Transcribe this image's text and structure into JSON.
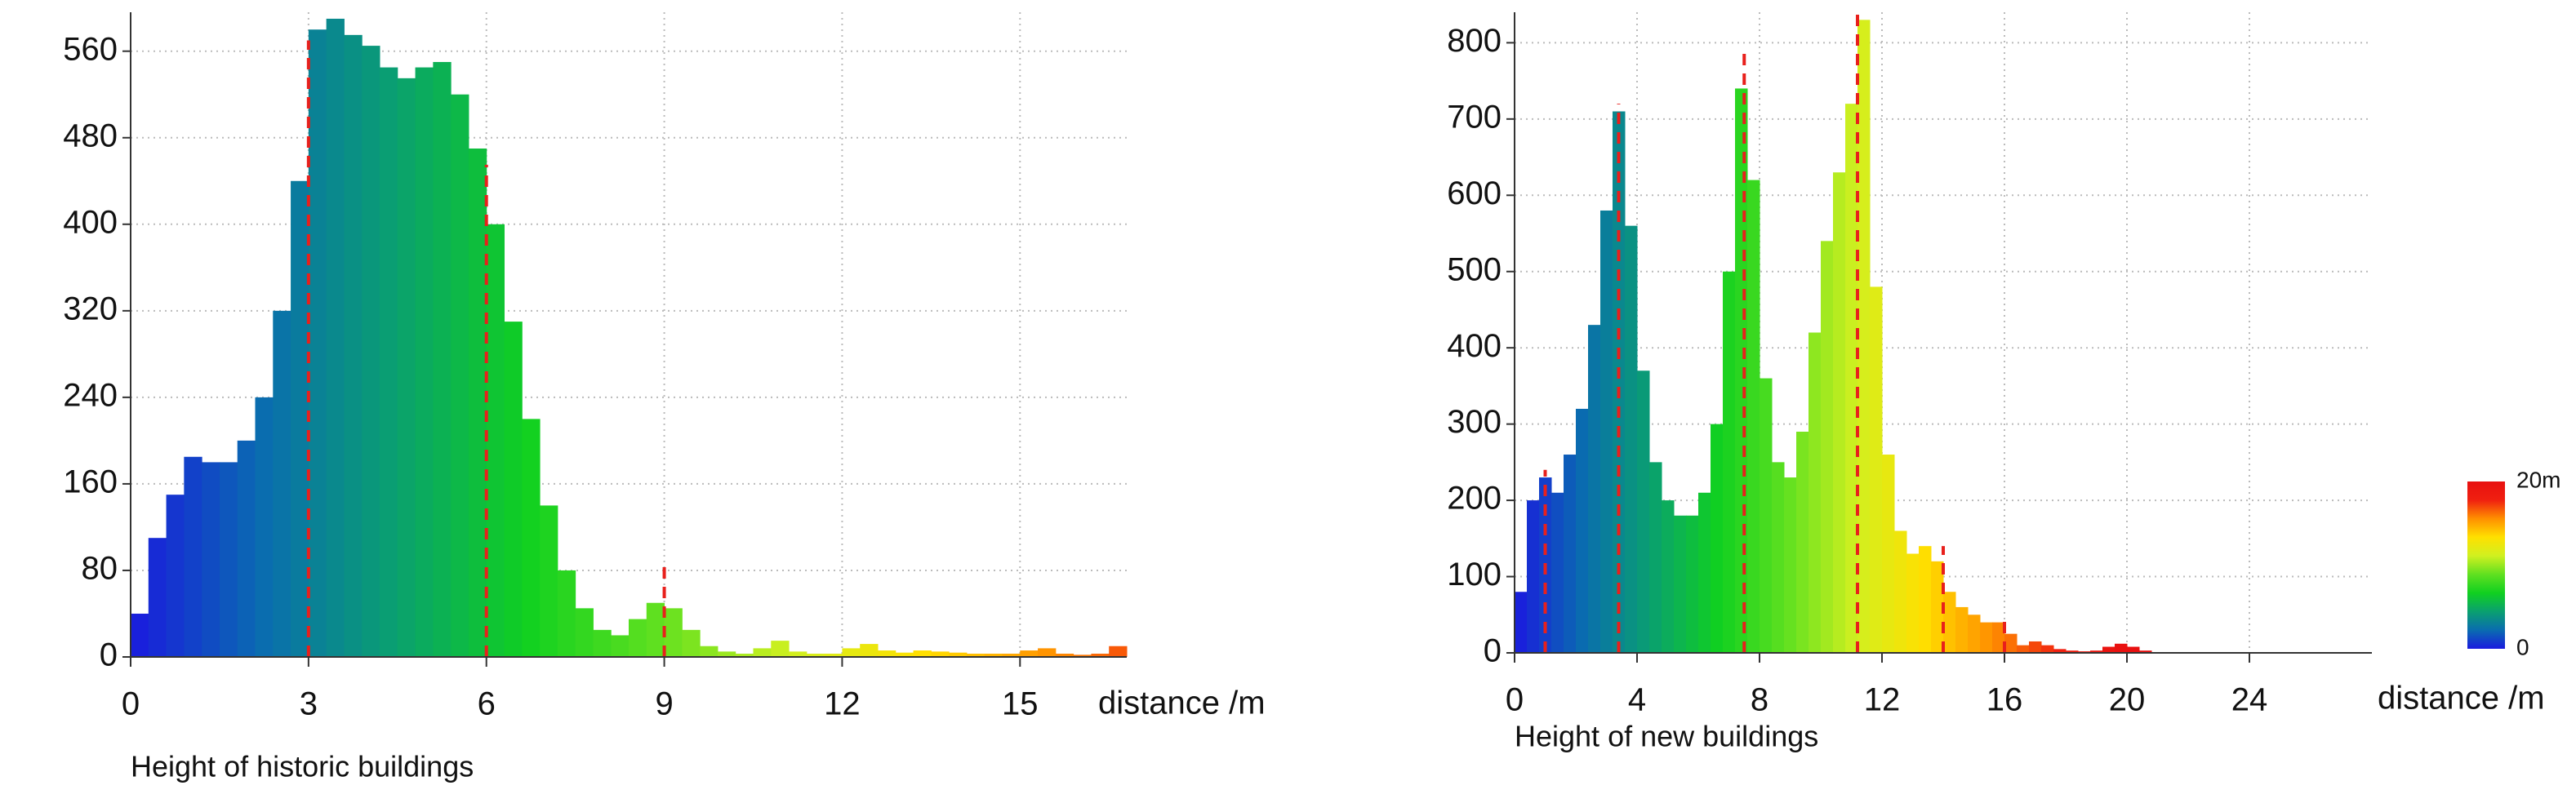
{
  "chart_data": [
    {
      "type": "histogram",
      "xlabel": "distance /m",
      "title": "Height of historic buildings",
      "bins": [
        0,
        0.3,
        0.6,
        0.9,
        1.2,
        1.5,
        1.8,
        2.1,
        2.4,
        2.7,
        3,
        3.3,
        3.6,
        3.9,
        4.2,
        4.5,
        4.8,
        5.1,
        5.4,
        5.7,
        6,
        6.3,
        6.6,
        6.9,
        7.2,
        7.5,
        7.8,
        8.1,
        8.4,
        8.7,
        9,
        9.3,
        9.6,
        9.9,
        10.2,
        10.5,
        10.8,
        11.1,
        11.4,
        11.7,
        12,
        12.3,
        12.6,
        12.9,
        13.2,
        13.5,
        13.8,
        14.1,
        14.4,
        14.7,
        15,
        15.3,
        15.6,
        15.9,
        16.2,
        16.5,
        16.8
      ],
      "values": [
        40,
        110,
        150,
        185,
        180,
        180,
        200,
        240,
        320,
        440,
        580,
        590,
        575,
        565,
        545,
        535,
        545,
        550,
        520,
        470,
        400,
        310,
        220,
        140,
        80,
        45,
        25,
        20,
        35,
        50,
        45,
        25,
        10,
        5,
        3,
        8,
        15,
        5,
        3,
        3,
        8,
        12,
        6,
        4,
        6,
        5,
        4,
        3,
        3,
        3,
        6,
        8,
        3,
        2,
        3,
        10
      ],
      "xlim": [
        0,
        16.8
      ],
      "ylim": [
        0,
        596
      ],
      "xticks": [
        0,
        3,
        6,
        9,
        12,
        15
      ],
      "yticks": [
        0,
        80,
        160,
        240,
        320,
        400,
        480,
        560
      ],
      "grid": true,
      "ref_lines": [
        {
          "x": 3,
          "y": 570
        },
        {
          "x": 6,
          "y": 455
        },
        {
          "x": 9,
          "y": 90
        }
      ],
      "ref_color": "#e8201c"
    },
    {
      "type": "histogram",
      "xlabel": "distance /m",
      "title": "Height of new buildings",
      "bins": [
        0,
        0.4,
        0.8,
        1.2,
        1.6,
        2,
        2.4,
        2.8,
        3.2,
        3.6,
        4,
        4.4,
        4.8,
        5.2,
        5.6,
        6,
        6.4,
        6.8,
        7.2,
        7.6,
        8,
        8.4,
        8.8,
        9.2,
        9.6,
        10,
        10.4,
        10.8,
        11.2,
        11.6,
        12,
        12.4,
        12.8,
        13.2,
        13.6,
        14,
        14.4,
        14.8,
        15.2,
        15.6,
        16,
        16.4,
        16.8,
        17.2,
        17.6,
        18,
        18.4,
        18.8,
        19.2,
        19.6,
        20,
        20.4,
        20.8,
        21.2,
        21.6,
        22,
        22.4,
        22.8,
        23.2,
        23.6,
        24,
        24.4,
        24.8,
        25.2,
        25.6,
        26,
        26.4,
        26.8,
        27.2,
        27.6,
        28
      ],
      "values": [
        80,
        200,
        230,
        210,
        260,
        320,
        430,
        580,
        710,
        560,
        370,
        250,
        200,
        180,
        180,
        210,
        300,
        500,
        740,
        620,
        360,
        250,
        230,
        290,
        420,
        540,
        630,
        720,
        830,
        480,
        260,
        160,
        130,
        140,
        120,
        80,
        60,
        50,
        40,
        40,
        25,
        10,
        15,
        10,
        5,
        3,
        2,
        3,
        8,
        12,
        8,
        3,
        0,
        0,
        0,
        0,
        0,
        0,
        0,
        0,
        0,
        0,
        0,
        0,
        0,
        0,
        0,
        0,
        0,
        0
      ],
      "xlim": [
        0,
        28
      ],
      "ylim": [
        0,
        840
      ],
      "xticks": [
        0,
        4,
        8,
        12,
        16,
        20,
        24
      ],
      "yticks": [
        0,
        100,
        200,
        300,
        400,
        500,
        600,
        700,
        800
      ],
      "grid": true,
      "ref_lines": [
        {
          "x": 1,
          "y": 240
        },
        {
          "x": 3.4,
          "y": 720
        },
        {
          "x": 7.5,
          "y": 790
        },
        {
          "x": 11.2,
          "y": 840
        },
        {
          "x": 14,
          "y": 140
        },
        {
          "x": 16,
          "y": 50
        }
      ],
      "ref_color": "#e8201c",
      "colorbar": {
        "lim": [
          0,
          20
        ],
        "ticks": [
          {
            "value": 20,
            "label": "20m"
          },
          0
        ],
        "colors": [
          "#1a1adf",
          "#0a6cb0",
          "#0aa070",
          "#10d020",
          "#60e020",
          "#d0f020",
          "#ffe000",
          "#ff9000",
          "#f02010",
          "#e81010"
        ]
      }
    }
  ]
}
